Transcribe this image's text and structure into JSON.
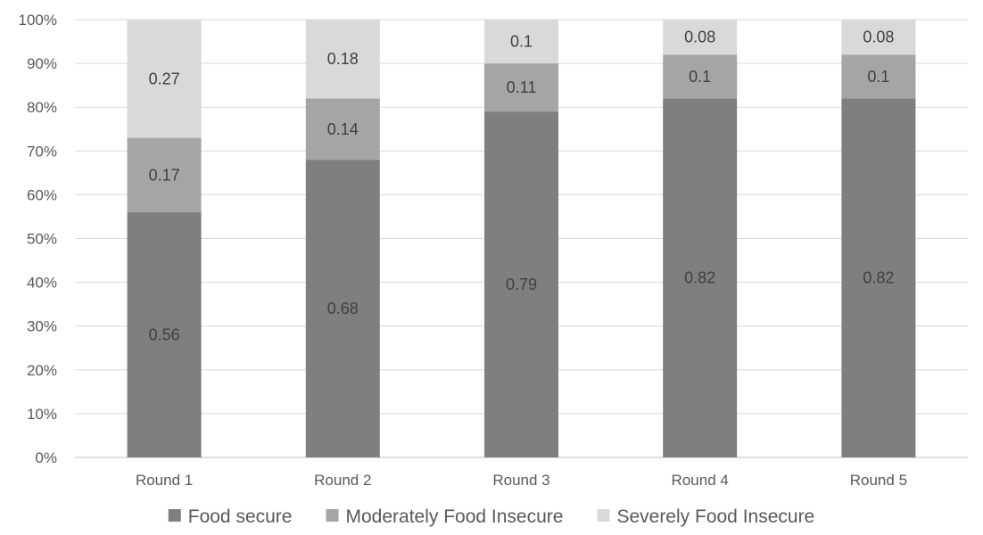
{
  "chart_data": {
    "type": "bar",
    "stacked": true,
    "percent_stacked": true,
    "categories": [
      "Round 1",
      "Round 2",
      "Round 3",
      "Round 4",
      "Round 5"
    ],
    "series": [
      {
        "name": "Food secure",
        "values": [
          0.56,
          0.68,
          0.79,
          0.82,
          0.82
        ],
        "color": "#7f7f7f"
      },
      {
        "name": "Moderately Food Insecure",
        "values": [
          0.17,
          0.14,
          0.11,
          0.1,
          0.1
        ],
        "color": "#a5a5a5"
      },
      {
        "name": "Severely Food Insecure",
        "values": [
          0.27,
          0.18,
          0.1,
          0.08,
          0.08
        ],
        "color": "#d9d9d9"
      }
    ],
    "ylim": [
      0,
      1
    ],
    "yticks": [
      "0%",
      "10%",
      "20%",
      "30%",
      "40%",
      "50%",
      "60%",
      "70%",
      "80%",
      "90%",
      "100%"
    ],
    "grid": true,
    "legend_position": "bottom",
    "title": "",
    "xlabel": "",
    "ylabel": ""
  }
}
